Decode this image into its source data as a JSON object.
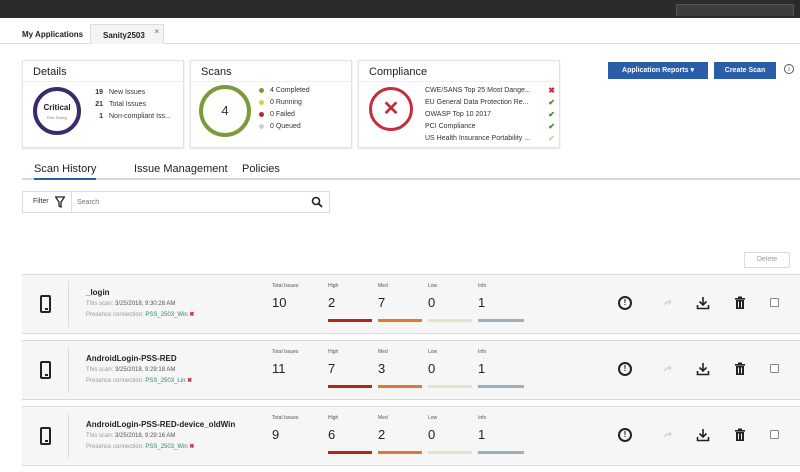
{
  "tabs": {
    "first": "My Applications",
    "second": "Sanity2503",
    "close": "×"
  },
  "details": {
    "title": "Details",
    "ring_label": "Critical",
    "ring_sub": "Risk Rating",
    "items": [
      {
        "count": "19",
        "label": "New Issues"
      },
      {
        "count": "21",
        "label": "Total Issues"
      },
      {
        "count": "1",
        "label": "Non-compliant Iss..."
      }
    ]
  },
  "scans": {
    "title": "Scans",
    "total": "4",
    "items": [
      {
        "label": "4 Completed",
        "color": "#7c9a3a"
      },
      {
        "label": "0 Running",
        "color": "#e6c84a"
      },
      {
        "label": "0 Failed",
        "color": "#a8303a"
      },
      {
        "label": "0 Queued",
        "color": "#cfcfcf"
      }
    ]
  },
  "compliance": {
    "title": "Compliance",
    "symbol": "✕",
    "items": [
      {
        "label": "CWE/SANS Top 25 Most Dange...",
        "status": "fail"
      },
      {
        "label": "EU General Data Protection Re...",
        "status": "pass"
      },
      {
        "label": "OWASP Top 10 2017",
        "status": "pass"
      },
      {
        "label": "PCI Compliance",
        "status": "pass"
      },
      {
        "label": "US Health Insurance Portability ...",
        "status": "pass-light"
      }
    ]
  },
  "buttons": {
    "reports": "Application Reports  ▾",
    "create": "Create Scan",
    "info": "i",
    "delete": "Delete"
  },
  "subtabs": [
    "Scan History",
    "Issue Management",
    "Policies"
  ],
  "filter": {
    "label": "Filter",
    "placeholder": "Search"
  },
  "columns": {
    "total": "Total Issues",
    "high": "High",
    "med": "Med",
    "low": "Low",
    "info": "Info"
  },
  "rows": [
    {
      "name": "_login",
      "scan_label": "This scan:",
      "scan_date": "3/25/2018, 9:30:28 AM",
      "conn_label": "Presence connection:",
      "conn_name": "PSS_2503_Win",
      "total": "10",
      "high": "2",
      "med": "7",
      "low": "0",
      "info": "1"
    },
    {
      "name": "AndroidLogin-PSS-RED",
      "scan_label": "This scan:",
      "scan_date": "3/25/2018, 9:29:18 AM",
      "conn_label": "Presence connection:",
      "conn_name": "PSS_2503_Lin",
      "total": "11",
      "high": "7",
      "med": "3",
      "low": "0",
      "info": "1"
    },
    {
      "name": "AndroidLogin-PSS-RED-device_oldWin",
      "scan_label": "This scan:",
      "scan_date": "3/25/2018, 9:29:16 AM",
      "conn_label": "Presence connection:",
      "conn_name": "PSS_2503_Win",
      "total": "9",
      "high": "6",
      "med": "2",
      "low": "0",
      "info": "1"
    }
  ]
}
